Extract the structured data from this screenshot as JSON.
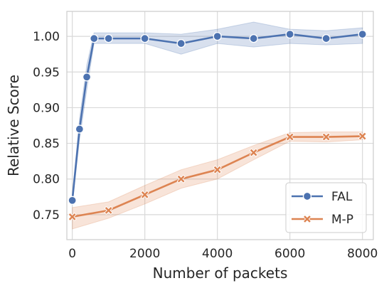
{
  "chart_data": {
    "type": "line",
    "xlabel": "Number of packets",
    "ylabel": "Relative Score",
    "xlim": [
      -150,
      8300
    ],
    "ylim": [
      0.715,
      1.035
    ],
    "x_ticks": [
      0,
      2000,
      4000,
      6000,
      8000
    ],
    "x_tick_labels": [
      "0",
      "2000",
      "4000",
      "6000",
      "8000"
    ],
    "y_ticks": [
      0.75,
      0.8,
      0.85,
      0.9,
      0.95,
      1.0
    ],
    "y_tick_labels": [
      "0.75",
      "0.80",
      "0.85",
      "0.90",
      "0.95",
      "1.00"
    ],
    "grid": true,
    "legend_position": "lower right",
    "series": [
      {
        "name": "FAL",
        "color": "#4c72b0",
        "marker": "circle",
        "x": [
          0,
          200,
          400,
          600,
          1000,
          2000,
          3000,
          4000,
          5000,
          6000,
          7000,
          8000
        ],
        "y": [
          0.77,
          0.87,
          0.943,
          0.997,
          0.997,
          0.997,
          0.99,
          1.0,
          0.997,
          1.003,
          0.997,
          1.003
        ],
        "lower": [
          0.765,
          0.855,
          0.925,
          0.99,
          0.99,
          0.99,
          0.975,
          0.99,
          0.985,
          0.99,
          0.988,
          0.99
        ],
        "upper": [
          0.775,
          0.885,
          0.96,
          1.005,
          1.005,
          1.005,
          1.003,
          1.01,
          1.02,
          1.01,
          1.008,
          1.012
        ]
      },
      {
        "name": "M-P",
        "color": "#dd8452",
        "marker": "x",
        "x": [
          0,
          1000,
          2000,
          3000,
          4000,
          5000,
          6000,
          7000,
          8000
        ],
        "y": [
          0.747,
          0.756,
          0.778,
          0.8,
          0.813,
          0.837,
          0.859,
          0.859,
          0.86
        ],
        "lower": [
          0.73,
          0.745,
          0.765,
          0.787,
          0.8,
          0.827,
          0.853,
          0.852,
          0.855
        ],
        "upper": [
          0.76,
          0.768,
          0.791,
          0.813,
          0.827,
          0.847,
          0.865,
          0.866,
          0.866
        ]
      }
    ]
  }
}
